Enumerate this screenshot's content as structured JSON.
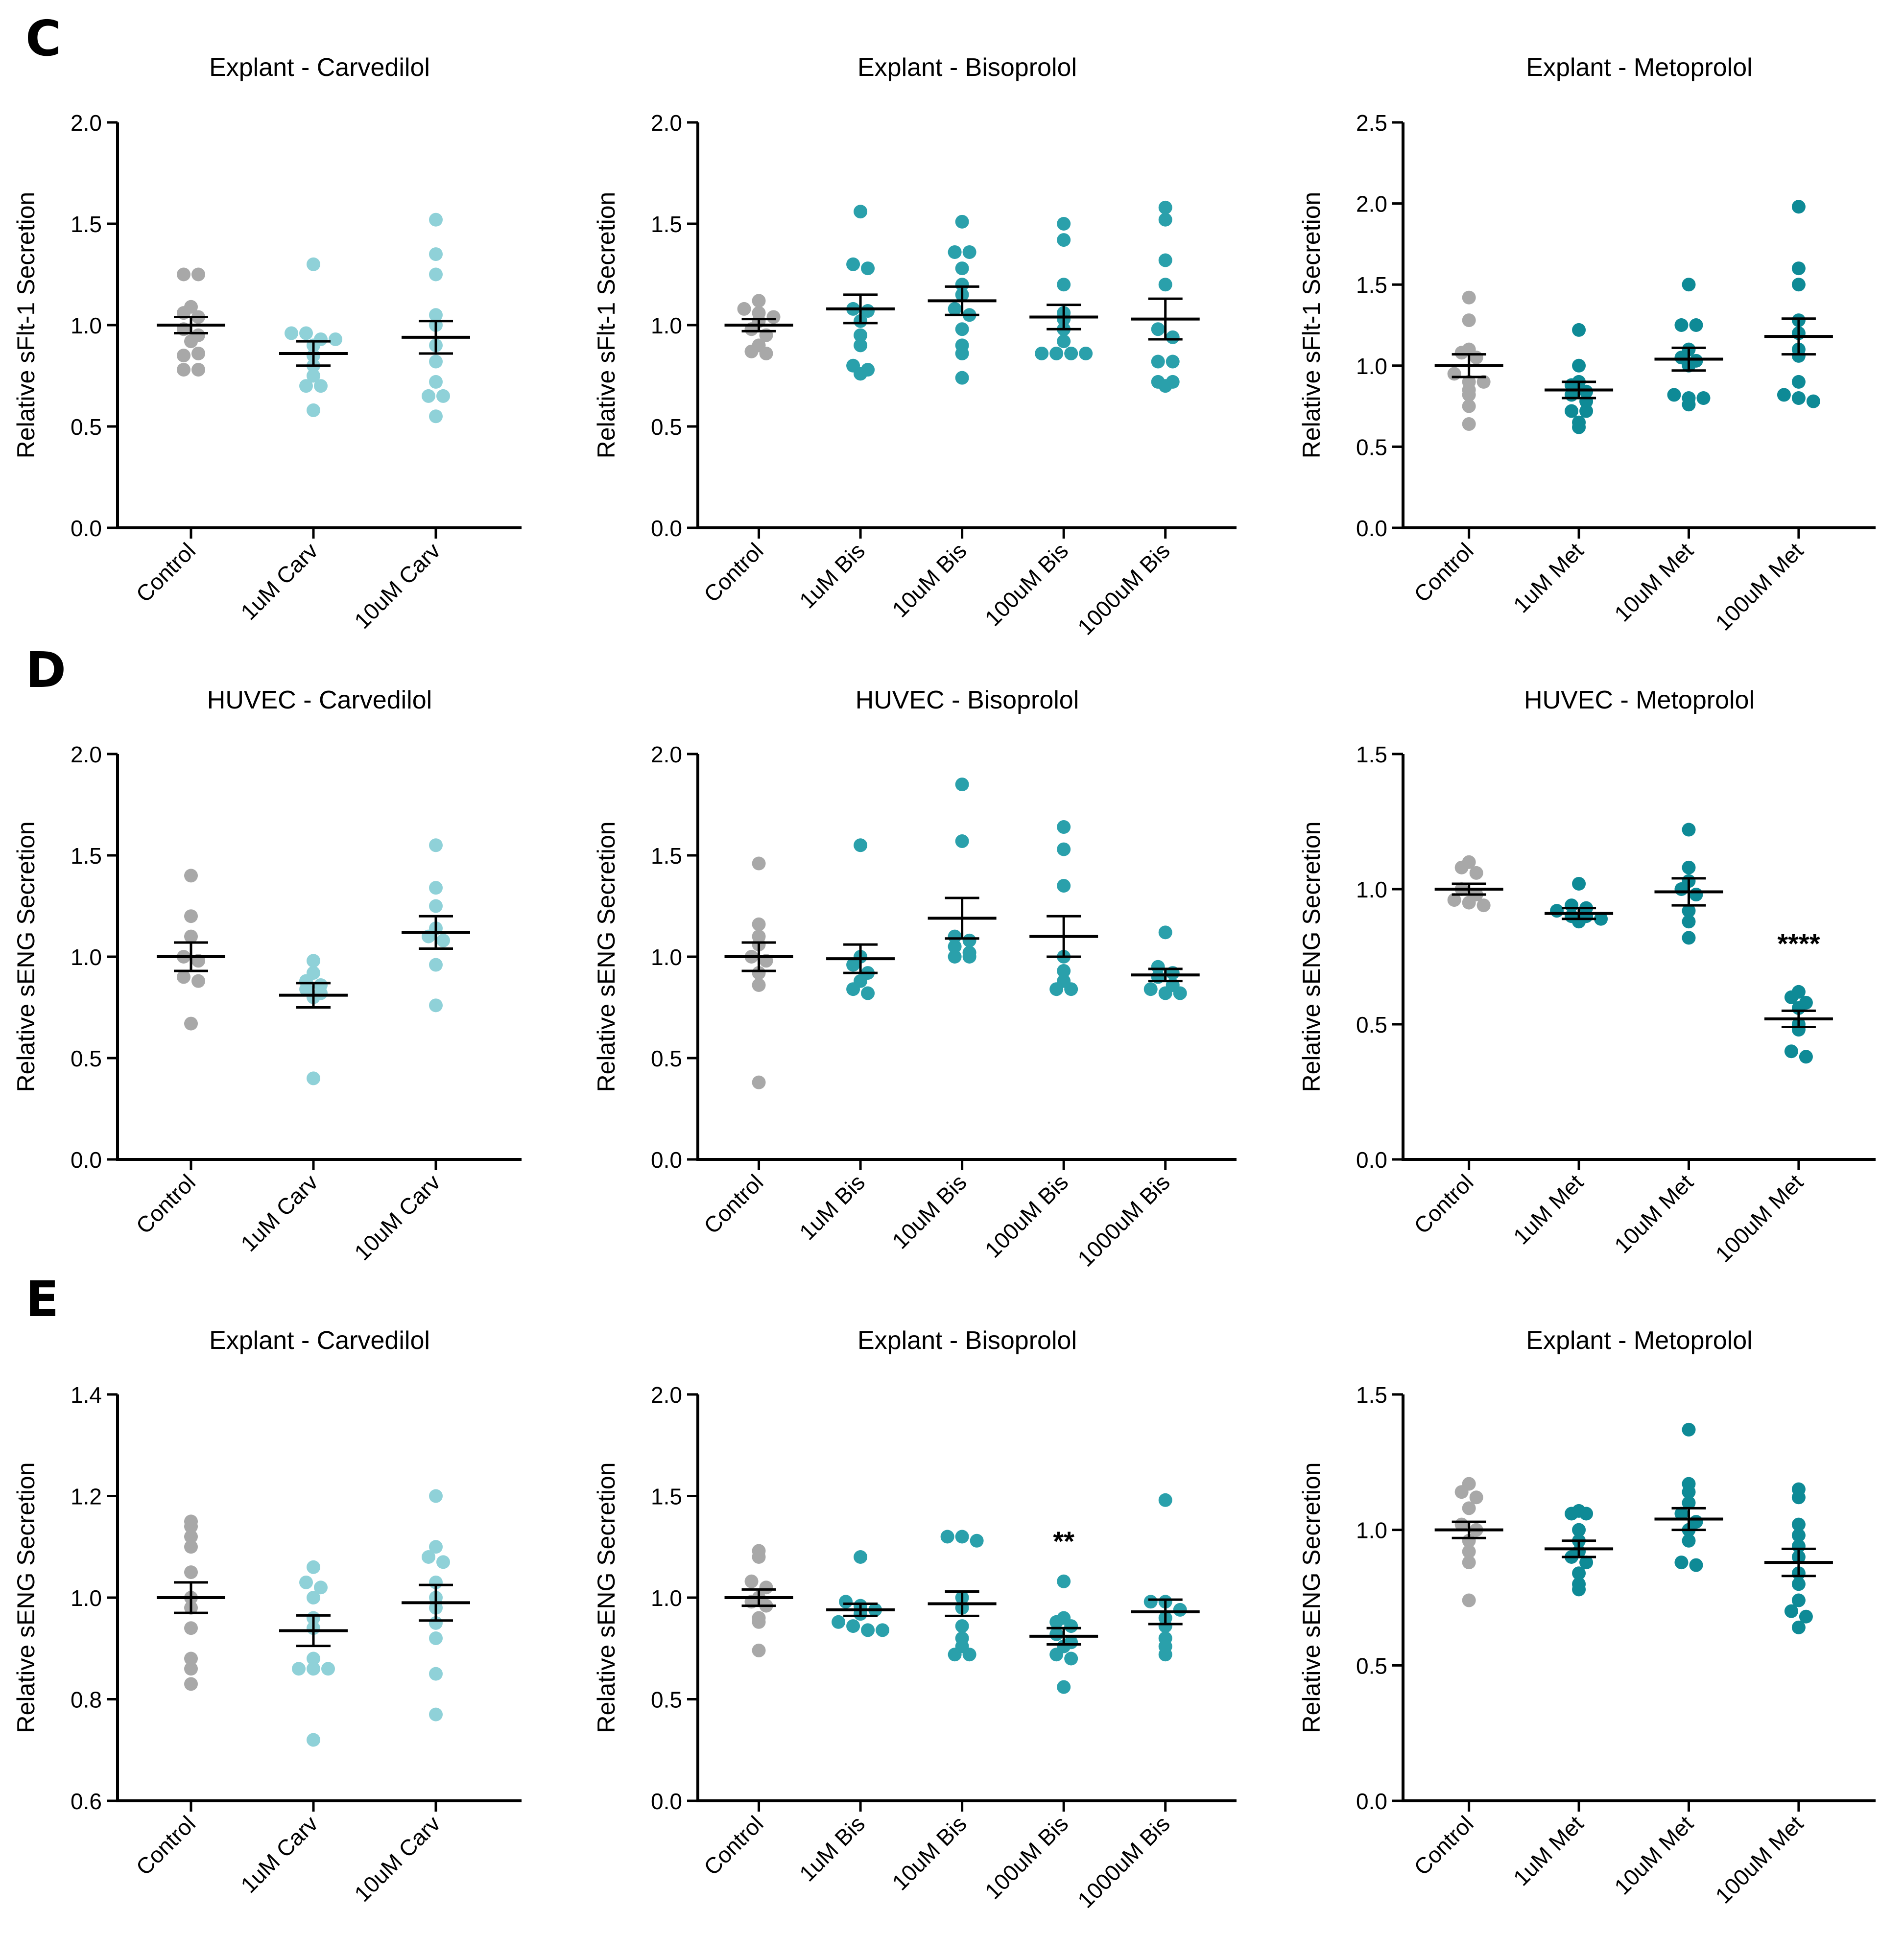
{
  "colors": {
    "control": "#a8a8a8",
    "carvedilol": "#8fd1d8",
    "bisoprolol": "#2aa0ab",
    "metoprolol": "#0e8a96",
    "axis": "#000000"
  },
  "panels": [
    {
      "label": "C"
    },
    {
      "label": "D"
    },
    {
      "label": "E"
    }
  ],
  "chart_data": [
    {
      "type": "scatter",
      "panel": "C",
      "title": "Explant - Carvedilol",
      "ylabel": "Relative sFlt-1 Secretion",
      "ylim": [
        0,
        2.0
      ],
      "yticks": [
        0.0,
        0.5,
        1.0,
        1.5,
        2.0
      ],
      "ytick_labels": [
        "0.0",
        "0.5",
        "1.0",
        "1.5",
        "2.0"
      ],
      "categories": [
        "Control",
        "1uM Carv",
        "10uM Carv"
      ],
      "groups": [
        {
          "color": "control",
          "mean": 1.0,
          "sem": 0.04,
          "points": [
            1.25,
            1.25,
            1.09,
            1.06,
            1.04,
            0.98,
            0.95,
            0.92,
            0.85,
            0.86,
            0.78,
            0.78
          ]
        },
        {
          "color": "carvedilol",
          "mean": 0.86,
          "sem": 0.06,
          "points": [
            1.3,
            0.96,
            0.96,
            0.93,
            0.93,
            0.9,
            0.85,
            0.8,
            0.75,
            0.7,
            0.7,
            0.58
          ]
        },
        {
          "color": "carvedilol",
          "mean": 0.94,
          "sem": 0.08,
          "points": [
            1.52,
            1.35,
            1.25,
            1.05,
            1.0,
            0.9,
            0.82,
            0.72,
            0.65,
            0.65,
            0.55
          ]
        }
      ],
      "annotations": []
    },
    {
      "type": "scatter",
      "panel": "C",
      "title": "Explant - Bisoprolol",
      "ylabel": "Relative sFlt-1 Secretion",
      "ylim": [
        0,
        2.0
      ],
      "yticks": [
        0.0,
        0.5,
        1.0,
        1.5,
        2.0
      ],
      "ytick_labels": [
        "0.0",
        "0.5",
        "1.0",
        "1.5",
        "2.0"
      ],
      "categories": [
        "Control",
        "1uM Bis",
        "10uM Bis",
        "100uM Bis",
        "1000uM Bis"
      ],
      "groups": [
        {
          "color": "control",
          "mean": 1.0,
          "sem": 0.03,
          "points": [
            1.12,
            1.08,
            1.06,
            1.04,
            1.02,
            0.98,
            0.95,
            0.9,
            0.87,
            0.86
          ]
        },
        {
          "color": "bisoprolol",
          "mean": 1.08,
          "sem": 0.07,
          "points": [
            1.56,
            1.3,
            1.28,
            1.08,
            1.07,
            1.02,
            0.95,
            0.9,
            0.8,
            0.76,
            0.78
          ]
        },
        {
          "color": "bisoprolol",
          "mean": 1.12,
          "sem": 0.07,
          "points": [
            1.51,
            1.36,
            1.36,
            1.28,
            1.2,
            1.15,
            1.08,
            1.05,
            0.98,
            0.9,
            0.86,
            0.74
          ]
        },
        {
          "color": "bisoprolol",
          "mean": 1.04,
          "sem": 0.06,
          "points": [
            1.5,
            1.42,
            1.2,
            1.06,
            1.03,
            0.98,
            0.92,
            0.86,
            0.86,
            0.86,
            0.86
          ]
        },
        {
          "color": "bisoprolol",
          "mean": 1.03,
          "sem": 0.1,
          "points": [
            1.58,
            1.52,
            1.32,
            1.2,
            0.98,
            0.94,
            0.82,
            0.82,
            0.72,
            0.7,
            0.72
          ]
        }
      ],
      "annotations": []
    },
    {
      "type": "scatter",
      "panel": "C",
      "title": "Explant - Metoprolol",
      "ylabel": "Relative sFlt-1 Secretion",
      "ylim": [
        0,
        2.5
      ],
      "yticks": [
        0.0,
        0.5,
        1.0,
        1.5,
        2.0,
        2.5
      ],
      "ytick_labels": [
        "0.0",
        "0.5",
        "1.0",
        "1.5",
        "2.0",
        "2.5"
      ],
      "categories": [
        "Control",
        "1uM Met",
        "10uM Met",
        "100uM Met"
      ],
      "groups": [
        {
          "color": "control",
          "mean": 1.0,
          "sem": 0.07,
          "points": [
            1.42,
            1.28,
            1.1,
            1.08,
            1.05,
            0.95,
            0.9,
            0.9,
            0.85,
            0.82,
            0.75,
            0.64
          ]
        },
        {
          "color": "metoprolol",
          "mean": 0.85,
          "sem": 0.05,
          "points": [
            1.22,
            1.0,
            0.9,
            0.88,
            0.84,
            0.82,
            0.78,
            0.72,
            0.72,
            0.65,
            0.62
          ]
        },
        {
          "color": "metoprolol",
          "mean": 1.04,
          "sem": 0.07,
          "points": [
            1.5,
            1.25,
            1.25,
            1.1,
            1.05,
            1.03,
            1.0,
            0.82,
            0.8,
            0.8,
            0.76
          ]
        },
        {
          "color": "metoprolol",
          "mean": 1.18,
          "sem": 0.11,
          "points": [
            1.98,
            1.6,
            1.5,
            1.28,
            1.2,
            1.1,
            1.06,
            0.9,
            0.82,
            0.8,
            0.78
          ]
        }
      ],
      "annotations": []
    },
    {
      "type": "scatter",
      "panel": "D",
      "title": "HUVEC - Carvedilol",
      "ylabel": "Relative sENG Secretion",
      "ylim": [
        0,
        2.0
      ],
      "yticks": [
        0.0,
        0.5,
        1.0,
        1.5,
        2.0
      ],
      "ytick_labels": [
        "0.0",
        "0.5",
        "1.0",
        "1.5",
        "2.0"
      ],
      "categories": [
        "Control",
        "1uM Carv",
        "10uM Carv"
      ],
      "groups": [
        {
          "color": "control",
          "mean": 1.0,
          "sem": 0.07,
          "points": [
            1.4,
            1.2,
            1.1,
            1.0,
            0.98,
            0.9,
            0.88,
            0.67
          ]
        },
        {
          "color": "carvedilol",
          "mean": 0.81,
          "sem": 0.06,
          "points": [
            0.98,
            0.92,
            0.88,
            0.86,
            0.84,
            0.82,
            0.8,
            0.4
          ]
        },
        {
          "color": "carvedilol",
          "mean": 1.12,
          "sem": 0.08,
          "points": [
            1.55,
            1.34,
            1.25,
            1.14,
            1.1,
            1.08,
            0.96,
            0.76
          ]
        }
      ],
      "annotations": []
    },
    {
      "type": "scatter",
      "panel": "D",
      "title": "HUVEC - Bisoprolol",
      "ylabel": "Relative sENG Secretion",
      "ylim": [
        0,
        2.0
      ],
      "yticks": [
        0.0,
        0.5,
        1.0,
        1.5,
        2.0
      ],
      "ytick_labels": [
        "0.0",
        "0.5",
        "1.0",
        "1.5",
        "2.0"
      ],
      "categories": [
        "Control",
        "1uM Bis",
        "10uM Bis",
        "100uM Bis",
        "1000uM Bis"
      ],
      "groups": [
        {
          "color": "control",
          "mean": 1.0,
          "sem": 0.07,
          "points": [
            1.46,
            1.16,
            1.1,
            1.06,
            1.0,
            0.98,
            0.92,
            0.86,
            0.38
          ]
        },
        {
          "color": "bisoprolol",
          "mean": 0.99,
          "sem": 0.07,
          "points": [
            1.55,
            1.0,
            0.96,
            0.92,
            0.88,
            0.84,
            0.82
          ]
        },
        {
          "color": "bisoprolol",
          "mean": 1.19,
          "sem": 0.1,
          "points": [
            1.85,
            1.57,
            1.1,
            1.08,
            1.05,
            1.02,
            1.0,
            1.0
          ]
        },
        {
          "color": "bisoprolol",
          "mean": 1.1,
          "sem": 0.1,
          "points": [
            1.64,
            1.53,
            1.35,
            1.0,
            0.93,
            0.88,
            0.84,
            0.84
          ]
        },
        {
          "color": "bisoprolol",
          "mean": 0.91,
          "sem": 0.03,
          "points": [
            1.12,
            0.95,
            0.92,
            0.9,
            0.86,
            0.84,
            0.82,
            0.82
          ]
        }
      ],
      "annotations": []
    },
    {
      "type": "scatter",
      "panel": "D",
      "title": "HUVEC - Metoprolol",
      "ylabel": "Relative sENG Secretion",
      "ylim": [
        0,
        1.5
      ],
      "yticks": [
        0.0,
        0.5,
        1.0,
        1.5
      ],
      "ytick_labels": [
        "0.0",
        "0.5",
        "1.0",
        "1.5"
      ],
      "categories": [
        "Control",
        "1uM Met",
        "10uM Met",
        "100uM Met"
      ],
      "groups": [
        {
          "color": "control",
          "mean": 1.0,
          "sem": 0.02,
          "points": [
            1.1,
            1.08,
            1.06,
            1.0,
            0.98,
            0.96,
            0.95,
            0.94
          ]
        },
        {
          "color": "metoprolol",
          "mean": 0.91,
          "sem": 0.02,
          "points": [
            1.02,
            0.94,
            0.93,
            0.92,
            0.9,
            0.9,
            0.89,
            0.88
          ]
        },
        {
          "color": "metoprolol",
          "mean": 0.99,
          "sem": 0.05,
          "points": [
            1.22,
            1.08,
            1.03,
            1.0,
            0.98,
            0.92,
            0.88,
            0.82
          ]
        },
        {
          "color": "metoprolol",
          "mean": 0.52,
          "sem": 0.03,
          "points": [
            0.62,
            0.6,
            0.58,
            0.56,
            0.5,
            0.48,
            0.4,
            0.38
          ]
        }
      ],
      "annotations": [
        {
          "group": 3,
          "text": "****",
          "y": 0.8
        }
      ]
    },
    {
      "type": "scatter",
      "panel": "E",
      "title": "Explant - Carvedilol",
      "ylabel": "Relative sENG Secretion",
      "ylim": [
        0.6,
        1.4
      ],
      "yticks": [
        0.6,
        0.8,
        1.0,
        1.2,
        1.4
      ],
      "ytick_labels": [
        "0.6",
        "0.8",
        "1.0",
        "1.2",
        "1.4"
      ],
      "categories": [
        "Control",
        "1uM Carv",
        "10uM Carv"
      ],
      "groups": [
        {
          "color": "control",
          "mean": 1.0,
          "sem": 0.03,
          "points": [
            1.15,
            1.14,
            1.12,
            1.1,
            1.05,
            1.0,
            0.98,
            0.94,
            0.88,
            0.86,
            0.83
          ]
        },
        {
          "color": "carvedilol",
          "mean": 0.935,
          "sem": 0.03,
          "points": [
            1.06,
            1.03,
            1.02,
            1.0,
            0.96,
            0.94,
            0.88,
            0.86,
            0.86,
            0.86,
            0.72
          ]
        },
        {
          "color": "carvedilol",
          "mean": 0.99,
          "sem": 0.035,
          "points": [
            1.2,
            1.1,
            1.08,
            1.07,
            1.03,
            1.0,
            0.98,
            0.95,
            0.92,
            0.85,
            0.77
          ]
        }
      ],
      "annotations": []
    },
    {
      "type": "scatter",
      "panel": "E",
      "title": "Explant - Bisoprolol",
      "ylabel": "Relative sENG Secretion",
      "ylim": [
        0,
        2.0
      ],
      "yticks": [
        0.0,
        0.5,
        1.0,
        1.5,
        2.0
      ],
      "ytick_labels": [
        "0.0",
        "0.5",
        "1.0",
        "1.5",
        "2.0"
      ],
      "categories": [
        "Control",
        "1uM Bis",
        "10uM Bis",
        "100uM Bis",
        "1000uM Bis"
      ],
      "groups": [
        {
          "color": "control",
          "mean": 1.0,
          "sem": 0.04,
          "points": [
            1.23,
            1.2,
            1.08,
            1.05,
            1.0,
            0.98,
            0.96,
            0.9,
            0.88,
            0.74
          ]
        },
        {
          "color": "bisoprolol",
          "mean": 0.94,
          "sem": 0.03,
          "points": [
            1.2,
            0.98,
            0.96,
            0.94,
            0.92,
            0.88,
            0.86,
            0.84,
            0.84
          ]
        },
        {
          "color": "bisoprolol",
          "mean": 0.97,
          "sem": 0.06,
          "points": [
            1.3,
            1.3,
            1.28,
            1.0,
            0.95,
            0.86,
            0.8,
            0.76,
            0.72,
            0.72
          ]
        },
        {
          "color": "bisoprolol",
          "mean": 0.81,
          "sem": 0.04,
          "points": [
            1.08,
            0.9,
            0.88,
            0.86,
            0.82,
            0.78,
            0.76,
            0.72,
            0.7,
            0.56
          ]
        },
        {
          "color": "bisoprolol",
          "mean": 0.93,
          "sem": 0.06,
          "points": [
            1.48,
            0.98,
            0.98,
            0.94,
            0.9,
            0.86,
            0.8,
            0.76,
            0.72
          ]
        }
      ],
      "annotations": [
        {
          "group": 3,
          "text": "**",
          "y": 1.28
        }
      ]
    },
    {
      "type": "scatter",
      "panel": "E",
      "title": "Explant - Metoprolol",
      "ylabel": "Relative sENG Secretion",
      "ylim": [
        0,
        1.5
      ],
      "yticks": [
        0.0,
        0.5,
        1.0,
        1.5
      ],
      "ytick_labels": [
        "0.0",
        "0.5",
        "1.0",
        "1.5"
      ],
      "categories": [
        "Control",
        "1uM Met",
        "10uM Met",
        "100uM Met"
      ],
      "groups": [
        {
          "color": "control",
          "mean": 1.0,
          "sem": 0.03,
          "points": [
            1.17,
            1.14,
            1.12,
            1.08,
            1.02,
            1.0,
            0.96,
            0.92,
            0.88,
            0.74
          ]
        },
        {
          "color": "metoprolol",
          "mean": 0.93,
          "sem": 0.03,
          "points": [
            1.07,
            1.06,
            1.06,
            1.0,
            0.96,
            0.92,
            0.9,
            0.88,
            0.84,
            0.8,
            0.78
          ]
        },
        {
          "color": "metoprolol",
          "mean": 1.04,
          "sem": 0.04,
          "points": [
            1.37,
            1.17,
            1.14,
            1.1,
            1.06,
            1.03,
            1.0,
            0.96,
            0.88,
            0.87
          ]
        },
        {
          "color": "metoprolol",
          "mean": 0.88,
          "sem": 0.05,
          "points": [
            1.15,
            1.12,
            1.02,
            0.98,
            0.94,
            0.9,
            0.84,
            0.8,
            0.74,
            0.7,
            0.68,
            0.64
          ]
        }
      ],
      "annotations": []
    }
  ]
}
